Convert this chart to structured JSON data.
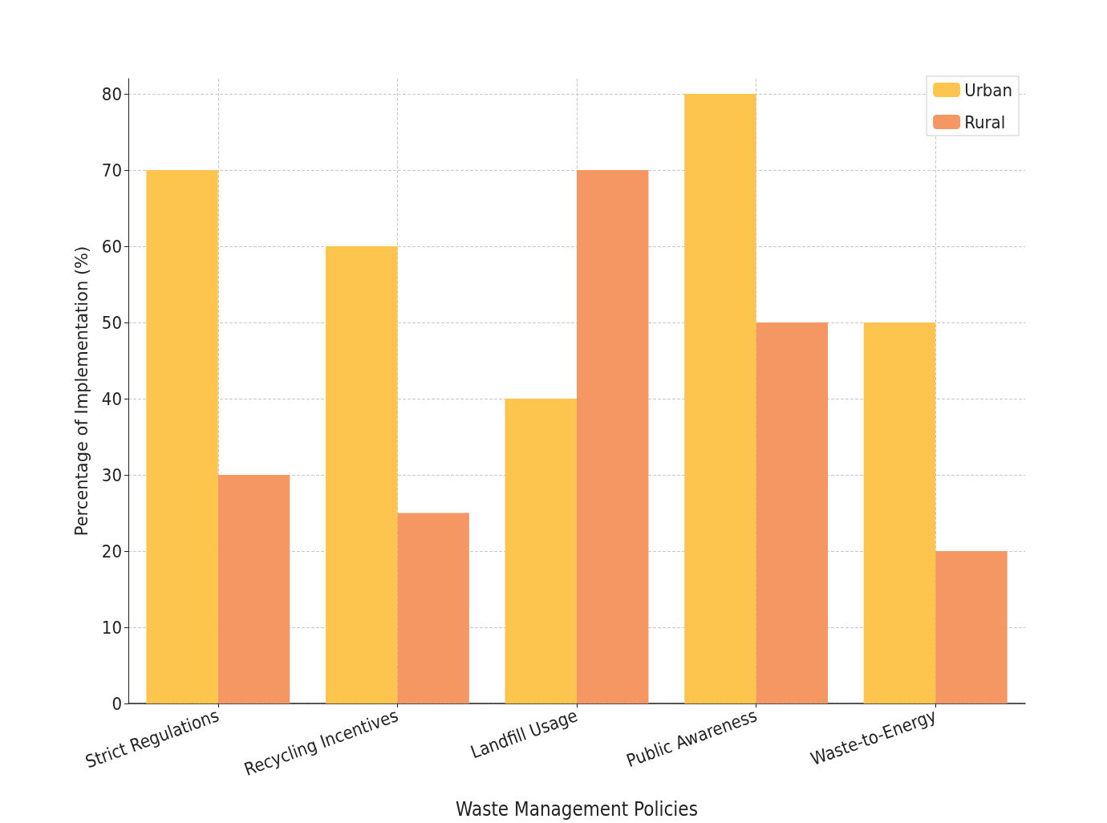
{
  "chart_data": {
    "type": "bar",
    "xlabel": "Waste Management Policies",
    "ylabel": "Percentage of Implementation (%)",
    "categories": [
      "Strict Regulations",
      "Recycling Incentives",
      "Landfill Usage",
      "Public Awareness",
      "Waste-to-Energy"
    ],
    "series": [
      {
        "name": "Urban",
        "color": "#fdc54e",
        "values": [
          70,
          60,
          40,
          80,
          50
        ]
      },
      {
        "name": "Rural",
        "color": "#f59762",
        "values": [
          30,
          25,
          70,
          50,
          20
        ]
      }
    ],
    "ylim": [
      0,
      82
    ],
    "yticks": [
      0,
      10,
      20,
      30,
      40,
      50,
      60,
      70,
      80
    ],
    "grid": true,
    "legend": "top right"
  }
}
